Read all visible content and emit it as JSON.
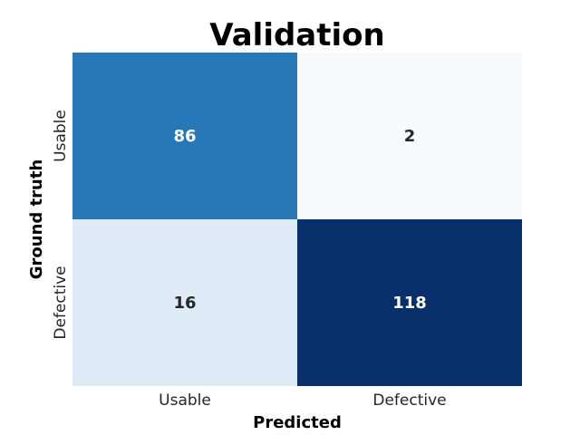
{
  "chart_data": {
    "type": "heatmap",
    "title": "Validation",
    "xlabel": "Predicted",
    "ylabel": "Ground truth",
    "x_categories": [
      "Usable",
      "Defective"
    ],
    "y_categories": [
      "Usable",
      "Defective"
    ],
    "values": [
      [
        86,
        2
      ],
      [
        16,
        118
      ]
    ],
    "colormap": "Blues",
    "colorbar": false,
    "cell_colors": [
      [
        "#2878b8",
        "#f7fbff"
      ],
      [
        "#dfebf7",
        "#08306b"
      ]
    ],
    "label_colors": [
      [
        "#ffffff",
        "#262626"
      ],
      [
        "#262626",
        "#ffffff"
      ]
    ]
  }
}
